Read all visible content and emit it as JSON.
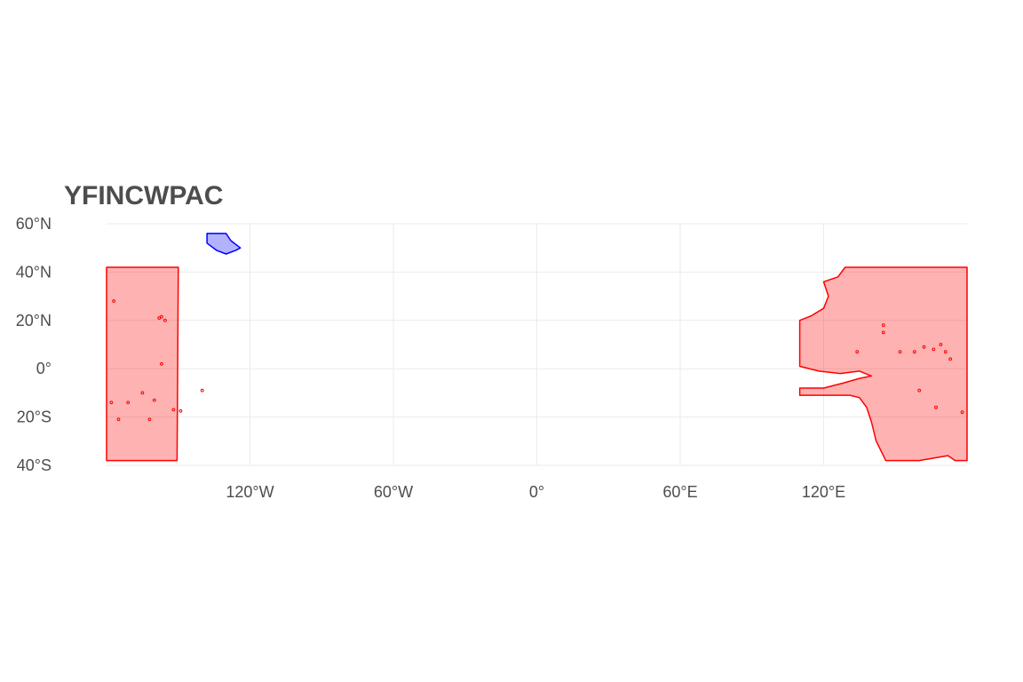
{
  "title": "YFINCWPAC",
  "map": {
    "projection": "equirectangular",
    "lon_range": [
      -180,
      180
    ],
    "lat_range": [
      -40,
      60
    ],
    "x_ticks": [
      {
        "lon": -120,
        "label": "120°W"
      },
      {
        "lon": -60,
        "label": "60°W"
      },
      {
        "lon": 0,
        "label": "0°"
      },
      {
        "lon": 60,
        "label": "60°E"
      },
      {
        "lon": 120,
        "label": "120°E"
      }
    ],
    "y_ticks": [
      {
        "lat": 60,
        "label": "60°N"
      },
      {
        "lat": 40,
        "label": "40°N"
      },
      {
        "lat": 20,
        "label": "20°N"
      },
      {
        "lat": 0,
        "label": "0°"
      },
      {
        "lat": -20,
        "label": "20°S"
      },
      {
        "lat": -40,
        "label": "40°S"
      }
    ],
    "grid": true,
    "regions": [
      {
        "name": "western-pacific-east-region",
        "fill": "#ff0000",
        "fill_opacity": 0.3,
        "stroke": "#ff0000",
        "coords": [
          [
            -180,
            42
          ],
          [
            -150,
            42
          ],
          [
            -150.5,
            -38
          ],
          [
            -180,
            -38
          ]
        ]
      },
      {
        "name": "western-pacific-west-region",
        "fill": "#ff0000",
        "fill_opacity": 0.3,
        "stroke": "#ff0000",
        "coords": [
          [
            129,
            42
          ],
          [
            180,
            42
          ],
          [
            180,
            -38
          ],
          [
            175,
            -38
          ],
          [
            172,
            -36
          ],
          [
            160,
            -38
          ],
          [
            146,
            -38
          ],
          [
            142,
            -30
          ],
          [
            140,
            -22
          ],
          [
            138,
            -16
          ],
          [
            135,
            -12
          ],
          [
            131,
            -11
          ],
          [
            128,
            -11
          ],
          [
            110,
            -11
          ],
          [
            110,
            -8
          ],
          [
            120,
            -8
          ],
          [
            128,
            -6
          ],
          [
            135,
            -4
          ],
          [
            140,
            -3
          ],
          [
            135,
            -1
          ],
          [
            127,
            -2
          ],
          [
            118,
            -1
          ],
          [
            110,
            1
          ],
          [
            110,
            20
          ],
          [
            115,
            22
          ],
          [
            120,
            25
          ],
          [
            122,
            30
          ],
          [
            120,
            36
          ],
          [
            126,
            38
          ],
          [
            129,
            42
          ]
        ]
      },
      {
        "name": "northeast-pacific-region",
        "fill": "#0000ff",
        "fill_opacity": 0.3,
        "stroke": "#0000ff",
        "coords": [
          [
            -138,
            56
          ],
          [
            -130,
            56
          ],
          [
            -128,
            53
          ],
          [
            -124,
            50
          ],
          [
            -126,
            49
          ],
          [
            -130,
            47.5
          ],
          [
            -134,
            49
          ],
          [
            -138,
            52
          ],
          [
            -138,
            56
          ]
        ]
      }
    ],
    "islands": [
      [
        -158,
        21
      ],
      [
        -155.5,
        20
      ],
      [
        -157,
        21.5
      ],
      [
        -177,
        28
      ],
      [
        -178,
        -14
      ],
      [
        -171,
        -14
      ],
      [
        -175,
        -21
      ],
      [
        -162,
        -21
      ],
      [
        -165,
        -10
      ],
      [
        -160,
        -13
      ],
      [
        -152,
        -17
      ],
      [
        -149,
        -17.5
      ],
      [
        -140,
        -9
      ],
      [
        -157,
        2
      ],
      [
        166,
        8
      ],
      [
        162,
        9
      ],
      [
        169,
        10
      ],
      [
        171,
        7
      ],
      [
        173,
        4
      ],
      [
        158,
        7
      ],
      [
        152,
        7
      ],
      [
        145,
        15
      ],
      [
        145,
        18
      ],
      [
        134,
        7
      ],
      [
        178,
        -18
      ],
      [
        167,
        -16
      ],
      [
        160,
        -9
      ]
    ]
  }
}
